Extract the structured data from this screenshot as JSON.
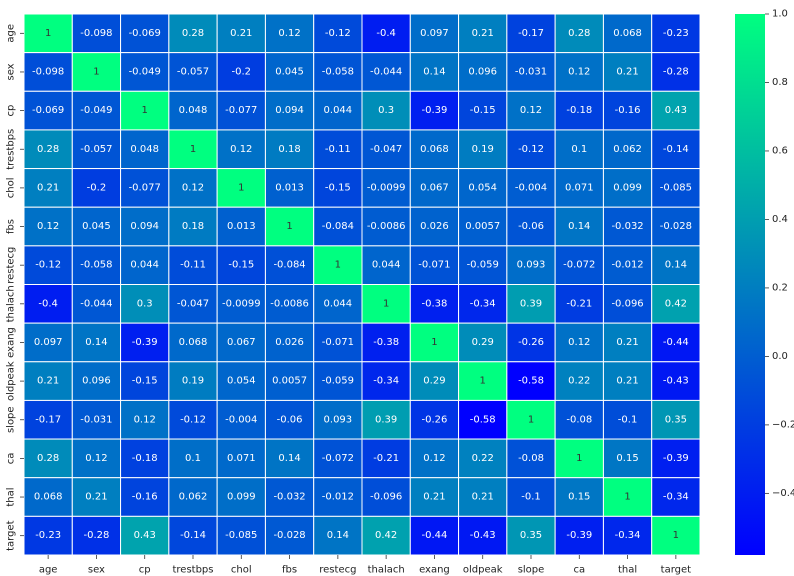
{
  "chart_data": {
    "type": "heatmap",
    "variables": [
      "age",
      "sex",
      "cp",
      "trestbps",
      "chol",
      "fbs",
      "restecg",
      "thalach",
      "exang",
      "oldpeak",
      "slope",
      "ca",
      "thal",
      "target"
    ],
    "matrix": [
      [
        1,
        -0.098,
        -0.069,
        0.28,
        0.21,
        0.12,
        -0.12,
        -0.4,
        0.097,
        0.21,
        -0.17,
        0.28,
        0.068,
        -0.23
      ],
      [
        -0.098,
        1,
        -0.049,
        -0.057,
        -0.2,
        0.045,
        -0.058,
        -0.044,
        0.14,
        0.096,
        -0.031,
        0.12,
        0.21,
        -0.28
      ],
      [
        -0.069,
        -0.049,
        1,
        0.048,
        -0.077,
        0.094,
        0.044,
        0.3,
        -0.39,
        -0.15,
        0.12,
        -0.18,
        -0.16,
        0.43
      ],
      [
        0.28,
        -0.057,
        0.048,
        1,
        0.12,
        0.18,
        -0.11,
        -0.047,
        0.068,
        0.19,
        -0.12,
        0.1,
        0.062,
        -0.14
      ],
      [
        0.21,
        -0.2,
        -0.077,
        0.12,
        1,
        0.013,
        -0.15,
        -0.0099,
        0.067,
        0.054,
        -0.004,
        0.071,
        0.099,
        -0.085
      ],
      [
        0.12,
        0.045,
        0.094,
        0.18,
        0.013,
        1,
        -0.084,
        -0.0086,
        0.026,
        0.0057,
        -0.06,
        0.14,
        -0.032,
        -0.028
      ],
      [
        -0.12,
        -0.058,
        0.044,
        -0.11,
        -0.15,
        -0.084,
        1,
        0.044,
        -0.071,
        -0.059,
        0.093,
        -0.072,
        -0.012,
        0.14
      ],
      [
        -0.4,
        -0.044,
        0.3,
        -0.047,
        -0.0099,
        -0.0086,
        0.044,
        1,
        -0.38,
        -0.34,
        0.39,
        -0.21,
        -0.096,
        0.42
      ],
      [
        0.097,
        0.14,
        -0.39,
        0.068,
        0.067,
        0.026,
        -0.071,
        -0.38,
        1,
        0.29,
        -0.26,
        0.12,
        0.21,
        -0.44
      ],
      [
        0.21,
        0.096,
        -0.15,
        0.19,
        0.054,
        0.0057,
        -0.059,
        -0.34,
        0.29,
        1,
        -0.58,
        0.22,
        0.21,
        -0.43
      ],
      [
        -0.17,
        -0.031,
        0.12,
        -0.12,
        -0.004,
        -0.06,
        0.093,
        0.39,
        -0.26,
        -0.58,
        1,
        -0.08,
        -0.1,
        0.35
      ],
      [
        0.28,
        0.12,
        -0.18,
        0.1,
        0.071,
        0.14,
        -0.072,
        -0.21,
        0.12,
        0.22,
        -0.08,
        1,
        0.15,
        -0.39
      ],
      [
        0.068,
        0.21,
        -0.16,
        0.062,
        0.099,
        -0.032,
        -0.012,
        -0.096,
        0.21,
        0.21,
        -0.1,
        0.15,
        1,
        -0.34
      ],
      [
        -0.23,
        -0.28,
        0.43,
        -0.14,
        -0.085,
        -0.028,
        0.14,
        0.42,
        -0.44,
        -0.43,
        0.35,
        -0.39,
        -0.34,
        1
      ]
    ],
    "colorscale": {
      "name": "winter",
      "low": "#0000ff",
      "high": "#00ff80",
      "vmin": -0.58,
      "vmax": 1.0
    },
    "colorbar_ticks": [
      1.0,
      0.8,
      0.6,
      0.4,
      0.2,
      0.0,
      -0.2,
      -0.4
    ],
    "colorbar_tick_labels": [
      "1.0",
      "0.8",
      "0.6",
      "0.4",
      "0.2",
      "0.0",
      "−0.2",
      "−0.4"
    ],
    "title": "",
    "xlabel": "",
    "ylabel": "",
    "grid": true,
    "cell_border_color": "#ffffff",
    "cell_text_color_dark_bg": "#ffffff",
    "cell_text_color_light_bg": "#333333"
  }
}
